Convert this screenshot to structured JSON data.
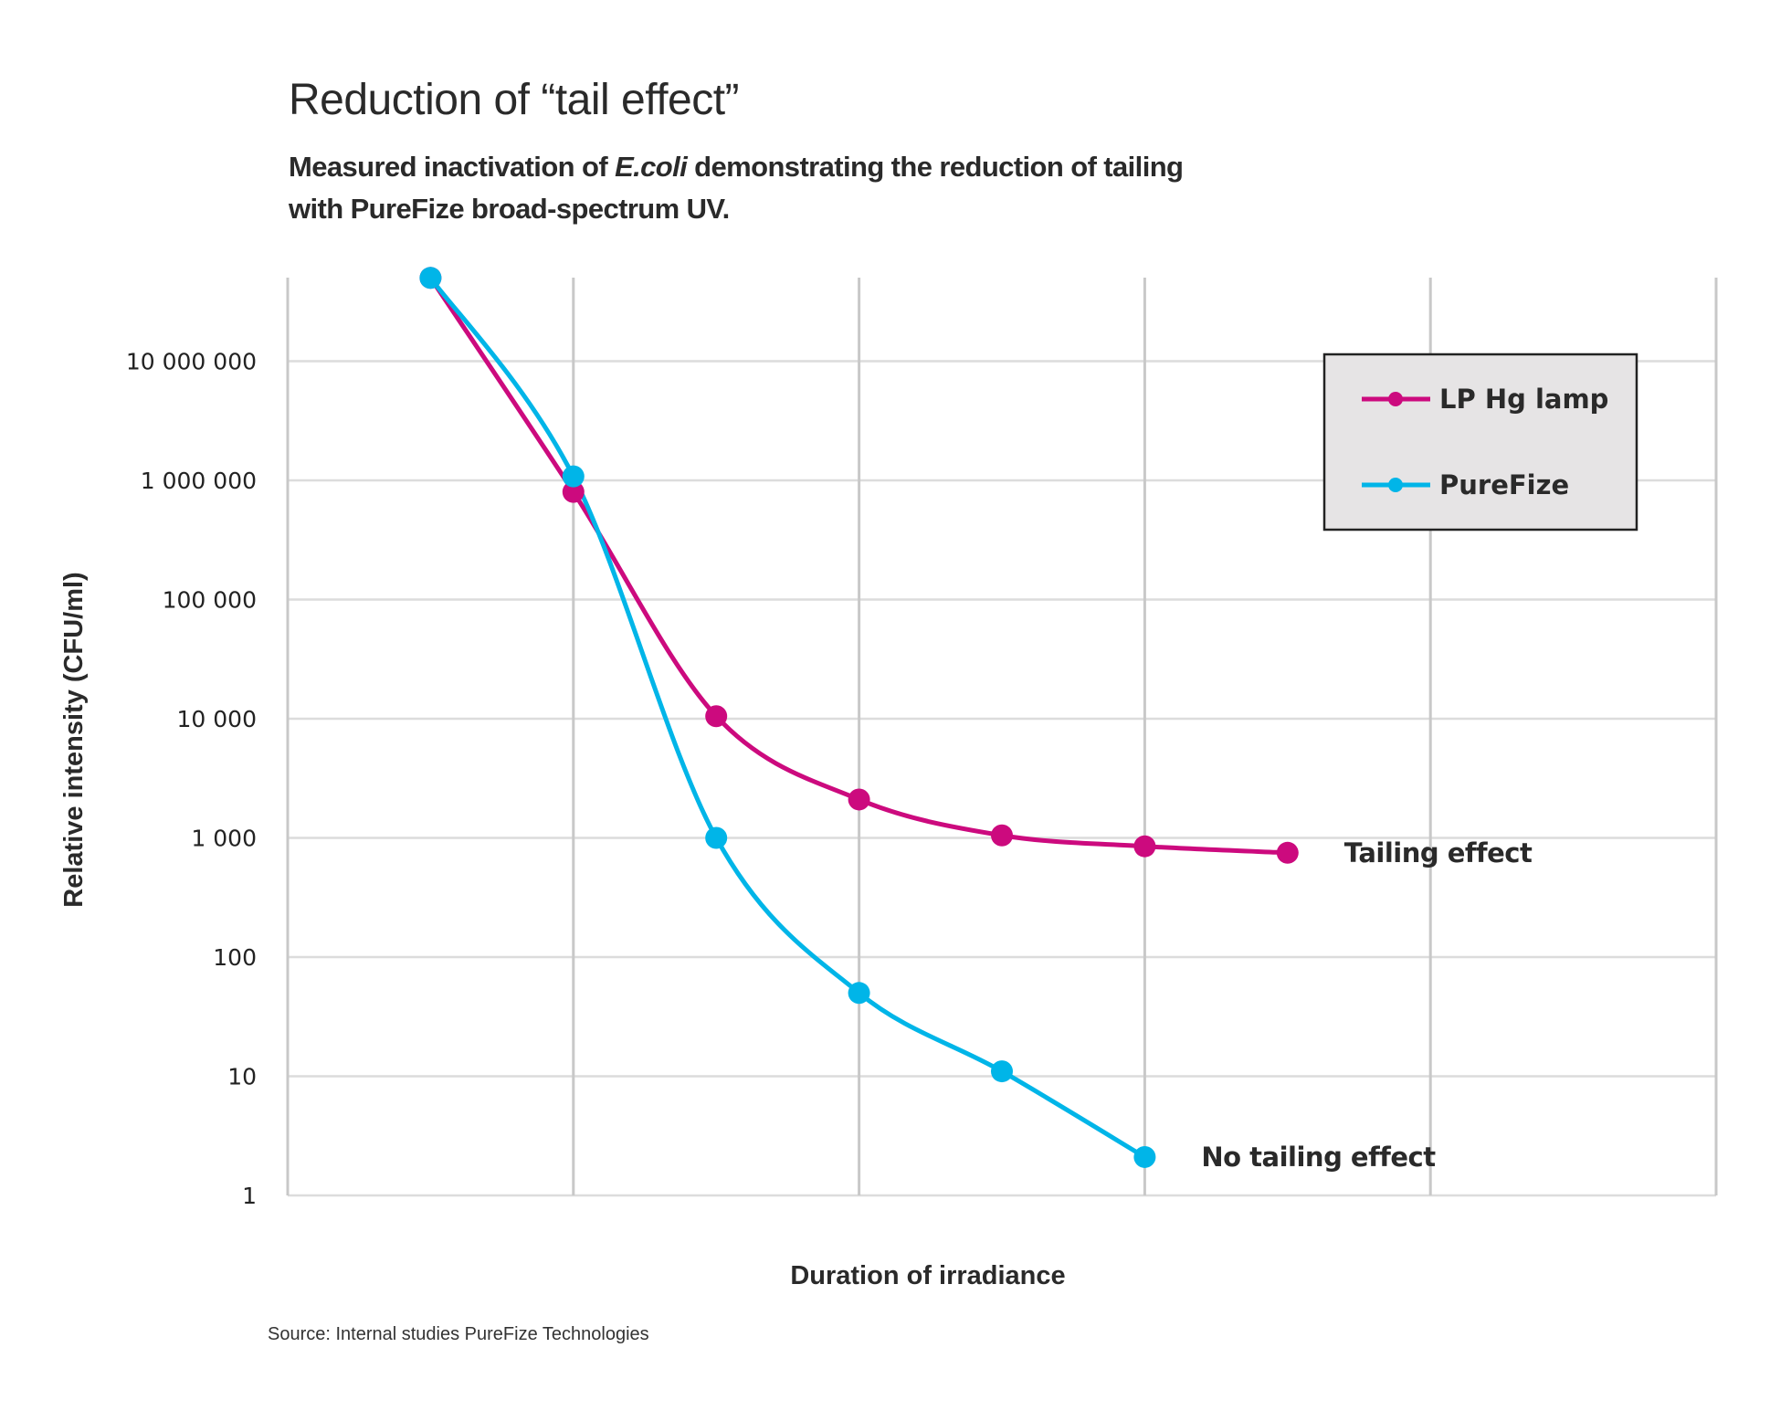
{
  "chart_data": {
    "type": "line",
    "title": "Reduction of “tail effect”",
    "subtitle_parts": [
      "Measured inactivation of ",
      "E.coli",
      " demonstrating the reduction of tailing with PureFize broad-spectrum UV."
    ],
    "xlabel": "Duration of irradiance",
    "ylabel": "Relative intensity (CFU/ml)",
    "yscale": "log",
    "ylim": [
      1,
      70000000
    ],
    "xlim": [
      0,
      10
    ],
    "grid": true,
    "y_ticks": [
      {
        "value": 1,
        "label": "1"
      },
      {
        "value": 10,
        "label": "10"
      },
      {
        "value": 100,
        "label": "100"
      },
      {
        "value": 1000,
        "label": "1 000"
      },
      {
        "value": 10000,
        "label": "10 000"
      },
      {
        "value": 100000,
        "label": "100 000"
      },
      {
        "value": 1000000,
        "label": "1 000 000"
      },
      {
        "value": 10000000,
        "label": "10 000 000"
      }
    ],
    "x_gridlines": [
      0,
      2,
      4,
      6,
      8,
      10
    ],
    "legend_position": "top-right",
    "series": [
      {
        "name": "LP Hg lamp",
        "color": "#CC0A7E",
        "x": [
          1,
          2,
          3,
          4,
          5,
          6,
          7
        ],
        "values": [
          50000000,
          800000,
          10500,
          2100,
          1050,
          850,
          750
        ]
      },
      {
        "name": "PureFize",
        "color": "#00B5E8",
        "x": [
          1,
          2,
          3,
          4,
          5,
          6
        ],
        "values": [
          50000000,
          1080000,
          1000,
          50,
          11,
          2.1
        ]
      }
    ],
    "annotations": [
      {
        "text": "Tailing effect",
        "series": 0
      },
      {
        "text": "No tailing effect",
        "series": 1
      }
    ],
    "source": "Source: Internal studies PureFize Technologies"
  }
}
